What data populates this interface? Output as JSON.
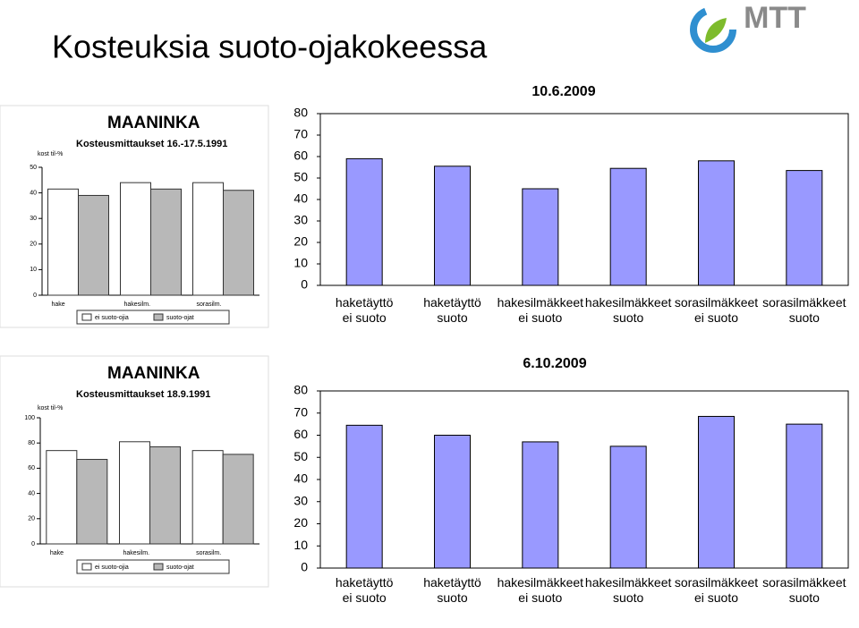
{
  "slide_title": "Kosteuksia suoto-ojakokeessa",
  "logo": "MTT",
  "chart_data": [
    {
      "type": "bar",
      "title": "MAANINKA",
      "subtitle": "Kosteusmittaukset 16.-17.5.1991",
      "ylabel": "kost til-%",
      "categories": [
        "hake",
        "hakesilm.",
        "sorasilm."
      ],
      "series": [
        {
          "name": "ei suoto-ojia",
          "color": "#ffffff",
          "values": [
            41.5,
            44,
            44
          ]
        },
        {
          "name": "suoto-ojat",
          "color": "#b8b8b8",
          "values": [
            39,
            41.5,
            41
          ]
        }
      ],
      "ylim": [
        0,
        50
      ],
      "yticks": [
        0,
        10,
        20,
        30,
        40,
        50
      ]
    },
    {
      "type": "bar",
      "title": "MAANINKA",
      "subtitle": "Kosteusmittaukset 18.9.1991",
      "ylabel": "kost til-%",
      "categories": [
        "hake",
        "hakesilm.",
        "sorasilm."
      ],
      "series": [
        {
          "name": "ei suoto-ojia",
          "color": "#ffffff",
          "values": [
            74,
            81,
            74
          ]
        },
        {
          "name": "suoto-ojat",
          "color": "#b8b8b8",
          "values": [
            67,
            77,
            71
          ]
        }
      ],
      "ylim": [
        0,
        100
      ],
      "yticks": [
        0,
        20,
        40,
        60,
        80,
        100
      ]
    },
    {
      "type": "bar",
      "title": "10.6.2009",
      "categories": [
        "haketäyttö ei suoto",
        "haketäyttö suoto",
        "hakesilmäkkeet ei suoto",
        "hakesilmäkkeet suoto",
        "sorasilmäkkeet ei suoto",
        "sorasilmäkkeet suoto"
      ],
      "values": [
        59,
        55.5,
        45,
        54.5,
        58,
        53.5
      ],
      "color": "#9999ff",
      "ylim": [
        0,
        80
      ],
      "yticks": [
        0,
        10,
        20,
        30,
        40,
        50,
        60,
        70,
        80
      ]
    },
    {
      "type": "bar",
      "title": "6.10.2009",
      "categories": [
        "haketäyttö ei suoto",
        "haketäyttö suoto",
        "hakesilmäkkeet ei suoto",
        "hakesilmäkkeet suoto",
        "sorasilmäkkeet ei suoto",
        "sorasilmäkkeet suoto"
      ],
      "values": [
        64.5,
        60,
        57,
        55,
        68.5,
        65
      ],
      "color": "#9999ff",
      "ylim": [
        0,
        80
      ],
      "yticks": [
        0,
        10,
        20,
        30,
        40,
        50,
        60,
        70,
        80
      ]
    }
  ]
}
